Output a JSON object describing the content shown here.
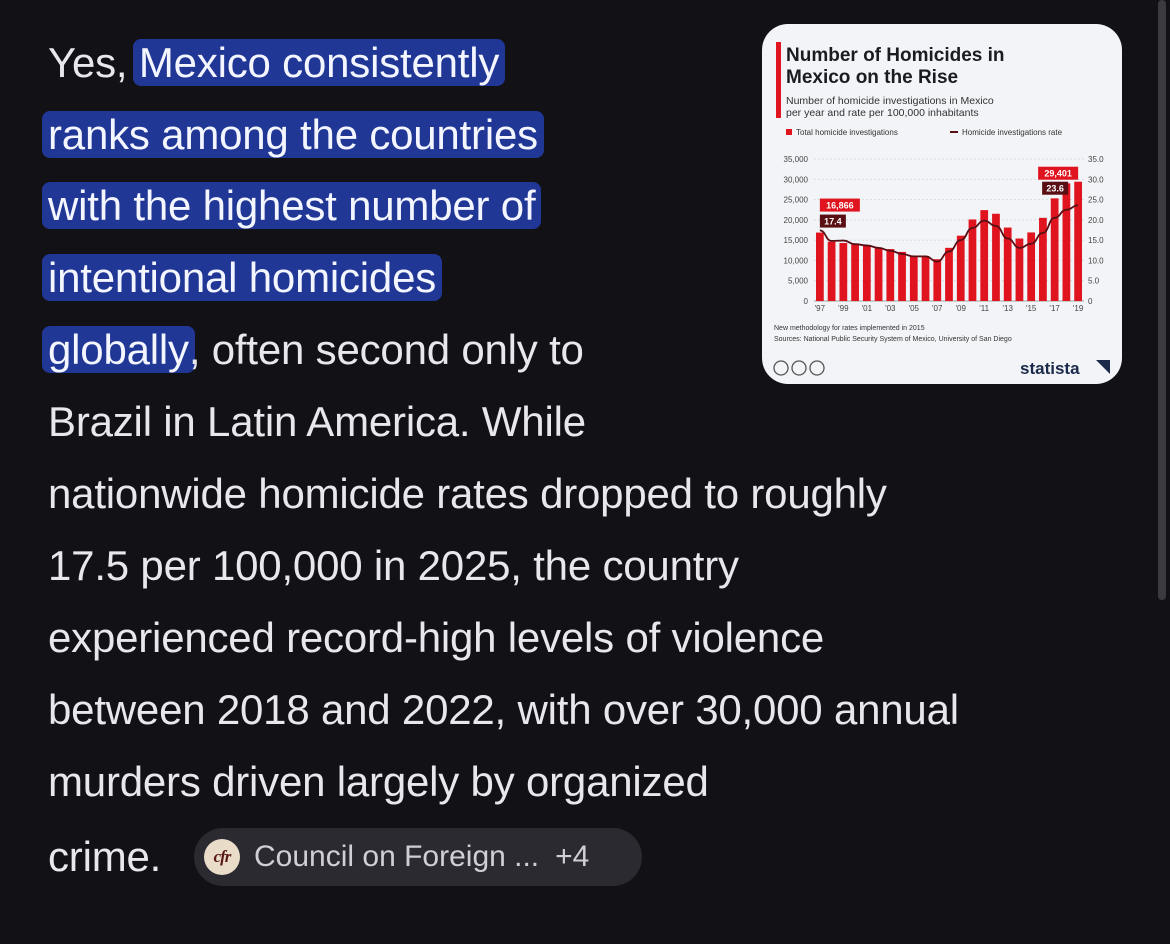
{
  "answer": {
    "line1_pre": "Yes, ",
    "line1_hl": "Mexico consistently",
    "line2_hl": "ranks among the countries",
    "line3_hl": "with the highest number of",
    "line4_hl": "intentional homicides",
    "line5_hl": "globally",
    "line5_post": ", often second only to",
    "line6": "Brazil in Latin America. While",
    "line7": "nationwide homicide rates dropped to roughly",
    "line8": "17.5 per 100,000 in 2025, the country",
    "line9": "experienced record-high levels of violence",
    "line10": "between 2018 and 2022, with over 30,000 annual",
    "line11": "murders driven largely by organized",
    "line12": "crime."
  },
  "source_chip": {
    "logo_text": "cfr",
    "label": "Council on Foreign ...",
    "more": "+4"
  },
  "colors": {
    "background": "#121216",
    "highlight": "#213796",
    "bar": "#e0141e",
    "rate_line": "#5a0f14"
  },
  "chart_data": {
    "type": "bar",
    "title_line1": "Number of Homicides in",
    "title_line2": "Mexico on the Rise",
    "subtitle_line1": "Number of homicide investigations in Mexico",
    "subtitle_line2": "per year and rate per 100,000 inhabitants",
    "legend": [
      "Total homicide investigations",
      "Homicide investigations rate"
    ],
    "x_tick_labels": [
      "'97",
      "'99",
      "'01",
      "'03",
      "'05",
      "'07",
      "'09",
      "'11",
      "'13",
      "'15",
      "'17",
      "'19"
    ],
    "categories": [
      "1997",
      "1998",
      "1999",
      "2000",
      "2001",
      "2002",
      "2003",
      "2004",
      "2005",
      "2006",
      "2007",
      "2008",
      "2009",
      "2010",
      "2011",
      "2012",
      "2013",
      "2014",
      "2015",
      "2016",
      "2017",
      "2018",
      "2019"
    ],
    "series": [
      {
        "name": "Total homicide investigations",
        "values": [
          16866,
          14600,
          14300,
          13900,
          13700,
          13200,
          12800,
          12100,
          11200,
          11100,
          10300,
          13100,
          16100,
          20100,
          22400,
          21500,
          18100,
          15400,
          16900,
          20500,
          25300,
          29000,
          29401
        ]
      },
      {
        "name": "Homicide investigations rate",
        "values": [
          17.4,
          14.8,
          14.9,
          14.0,
          13.7,
          13.1,
          12.4,
          11.6,
          11.0,
          11.0,
          9.7,
          12.2,
          15.0,
          18.0,
          19.8,
          18.5,
          15.4,
          13.1,
          14.1,
          16.8,
          20.5,
          22.5,
          23.6
        ]
      }
    ],
    "left_axis_ticks": [
      "0",
      "5,000",
      "10,000",
      "15,000",
      "20,000",
      "25,000",
      "30,000",
      "35,000"
    ],
    "right_axis_ticks": [
      "0",
      "5.0",
      "10.0",
      "15.0",
      "20.0",
      "25.0",
      "30.0",
      "35.0"
    ],
    "ylim_left": [
      0,
      35000
    ],
    "ylim_right": [
      0,
      35
    ],
    "annotations": {
      "first_count": "16,866",
      "first_rate": "17.4",
      "last_count": "29,401",
      "last_rate": "23.6"
    },
    "note": "New methodology for rates implemented in 2015",
    "source": "Sources: National Public Security System of Mexico, University of San Diego",
    "brand": "statista"
  }
}
